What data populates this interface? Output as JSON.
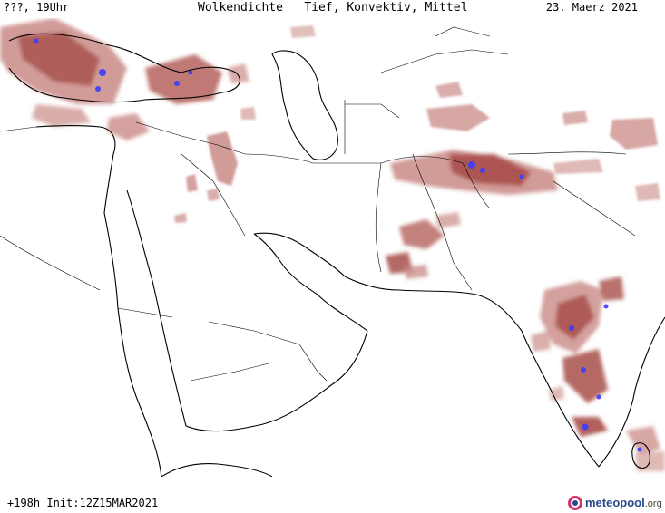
{
  "header": {
    "time_label": "???, 19Uhr",
    "title": "Wolkendichte   Tief, Konvektiv, Mittel",
    "date": "23. Maerz 2021"
  },
  "footer": {
    "run_label": "+198h Init:12Z15MAR2021",
    "logo_main": "meteopool",
    "logo_tld": ".org"
  },
  "colors": {
    "cloud_light": "#c98a86",
    "cloud_mid": "#a8504a",
    "cloud_dark": "#8c3a36",
    "convective": "#3b3bff",
    "coastline": "#000000",
    "borders": "#000000"
  },
  "icons": [
    "meteopool-logo-icon"
  ]
}
